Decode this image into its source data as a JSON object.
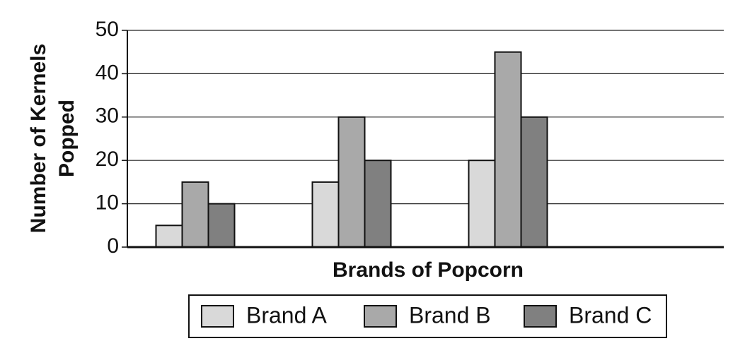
{
  "chart_data": {
    "type": "bar",
    "xlabel": "Brands of Popcorn",
    "ylabel": [
      "Number of Kernels",
      "Popped"
    ],
    "categories": [
      null,
      null,
      null
    ],
    "series": [
      {
        "name": "Brand A",
        "color": "#d9d9d9",
        "values": [
          5,
          15,
          20
        ]
      },
      {
        "name": "Brand B",
        "color": "#a9a9a9",
        "values": [
          15,
          30,
          45
        ]
      },
      {
        "name": "Brand C",
        "color": "#808080",
        "values": [
          10,
          20,
          30
        ]
      }
    ],
    "ylim": [
      0,
      50
    ],
    "yticks": [
      0,
      10,
      20,
      30,
      40,
      50
    ],
    "grid": true,
    "legend": "bottom"
  }
}
